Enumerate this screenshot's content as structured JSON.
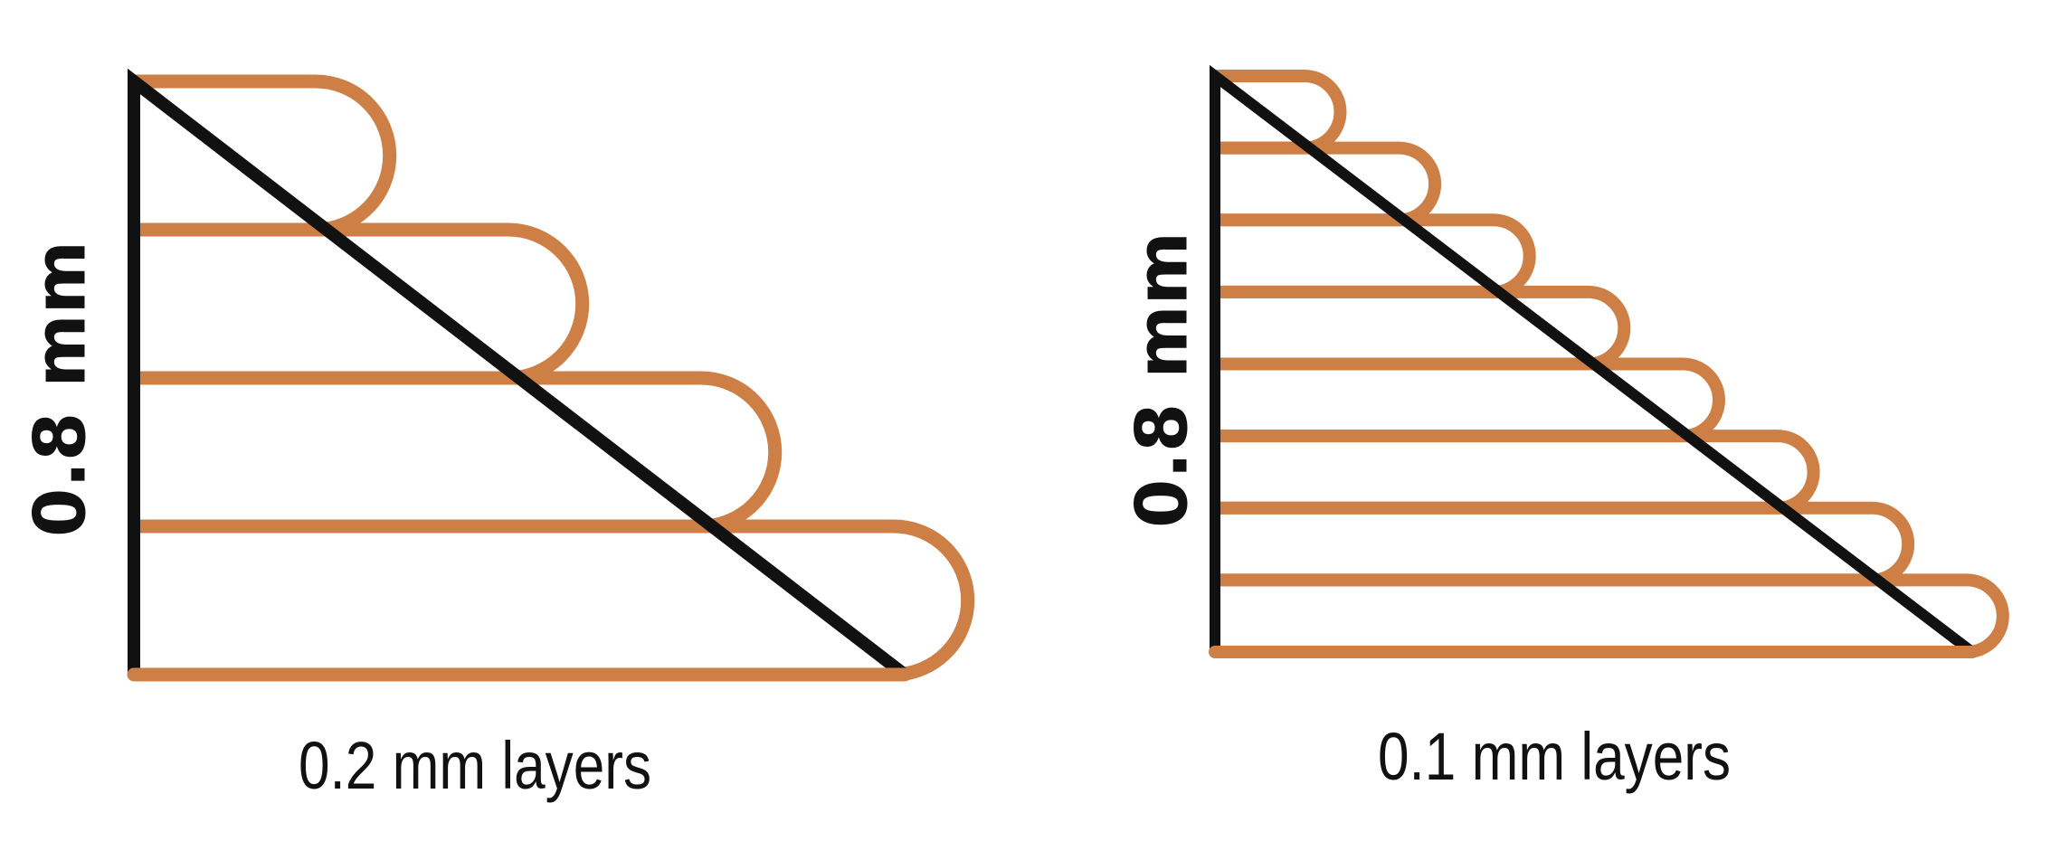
{
  "colors": {
    "background": "#ffffff",
    "triangle": "#111111",
    "layer": "#cd7f45"
  },
  "diagrams": [
    {
      "id": "coarse",
      "height_label": "0.8 mm",
      "caption": "0.2 mm layers",
      "part_height_mm": 0.8,
      "layer_height_mm": 0.2,
      "layer_count": 4
    },
    {
      "id": "fine",
      "height_label": "0.8 mm",
      "caption": "0.1 mm layers",
      "part_height_mm": 0.8,
      "layer_height_mm": 0.1,
      "layer_count": 8
    }
  ]
}
